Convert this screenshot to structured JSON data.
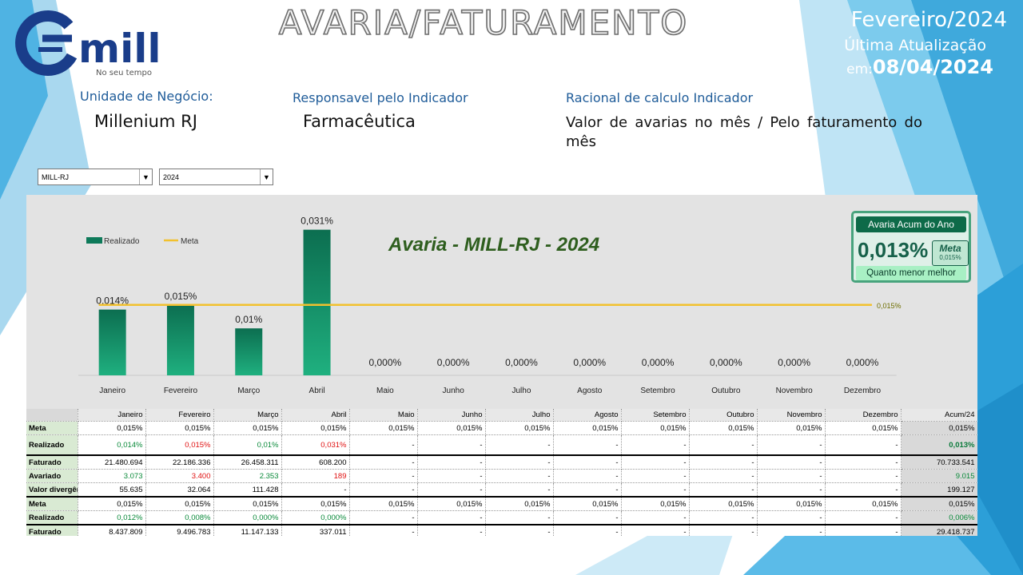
{
  "brand": {
    "logo_text": "mill",
    "logo_tagline": "No seu tempo"
  },
  "header": {
    "title": "AVARIA/FATURAMENTO",
    "period": "Fevereiro/2024",
    "update_label_1": "Última Atualização",
    "update_label_2": "em:",
    "update_date": "08/04/2024"
  },
  "info": {
    "unit_label": "Unidade de Negócio:",
    "unit_value": "Millenium RJ",
    "resp_label": "Responsavel pelo Indicador",
    "resp_value": "Farmacêutica",
    "calc_label": "Racional de calculo Indicador",
    "calc_value": "Valor de avarias no mês / Pelo faturamento do mês"
  },
  "filters": {
    "unit": "MILL-RJ",
    "year": "2024"
  },
  "kpi": {
    "title": "Avaria Acum do Ano",
    "value": "0,013%",
    "meta_label": "Meta",
    "meta_value": "0,015%",
    "note": "Quanto menor melhor"
  },
  "colors": {
    "bar": "#0e7a5a",
    "meta_line": "#f2c12e",
    "accent": "#1f5c99",
    "good": "#0a8a3a",
    "bad": "#e01010"
  },
  "chart_data": {
    "type": "bar",
    "title": "Avaria - MILL-RJ - 2024",
    "categories": [
      "Janeiro",
      "Fevereiro",
      "Março",
      "Abril",
      "Maio",
      "Junho",
      "Julho",
      "Agosto",
      "Setembro",
      "Outubro",
      "Novembro",
      "Dezembro"
    ],
    "series": [
      {
        "name": "Realizado",
        "values": [
          0.014,
          0.015,
          0.01,
          0.031,
          0,
          0,
          0,
          0,
          0,
          0,
          0,
          0
        ],
        "labels": [
          "0,014%",
          "0,015%",
          "0,01%",
          "0,031%",
          "0,000%",
          "0,000%",
          "0,000%",
          "0,000%",
          "0,000%",
          "0,000%",
          "0,000%",
          "0,000%"
        ]
      },
      {
        "name": "Meta",
        "values": [
          0.015,
          0.015,
          0.015,
          0.015,
          0.015,
          0.015,
          0.015,
          0.015,
          0.015,
          0.015,
          0.015,
          0.015
        ],
        "end_label": "0,015%"
      }
    ],
    "ylim": [
      0,
      0.034
    ],
    "legend": "top-left",
    "grid": false
  },
  "table": {
    "header": [
      "Janeiro",
      "Fevereiro",
      "Março",
      "Abril",
      "Maio",
      "Junho",
      "Julho",
      "Agosto",
      "Setembro",
      "Outubro",
      "Novembro",
      "Dezembro",
      "Acum/24"
    ],
    "rows": [
      {
        "label": "Meta",
        "cls": "",
        "values": [
          "0,015%",
          "0,015%",
          "0,015%",
          "0,015%",
          "0,015%",
          "0,015%",
          "0,015%",
          "0,015%",
          "0,015%",
          "0,015%",
          "0,015%",
          "0,015%",
          "0,015%"
        ],
        "colors": [
          "",
          "",
          "",
          "",
          "",
          "",
          "",
          "",
          "",
          "",
          "",
          "",
          ""
        ]
      },
      {
        "label": "Realizado",
        "cls": "tall thick",
        "values": [
          "0,014%",
          "0,015%",
          "0,01%",
          "0,031%",
          "-",
          "-",
          "-",
          "-",
          "-",
          "-",
          "-",
          "-",
          "0,013%"
        ],
        "colors": [
          "g",
          "r",
          "g",
          "r",
          "",
          "",
          "",
          "",
          "",
          "",
          "",
          "",
          "bg"
        ]
      },
      {
        "label": "Faturado",
        "cls": "",
        "values": [
          "21.480.694",
          "22.186.336",
          "26.458.311",
          "608.200",
          "-",
          "-",
          "-",
          "-",
          "-",
          "-",
          "-",
          "-",
          "70.733.541"
        ],
        "colors": [
          "",
          "",
          "",
          "",
          "",
          "",
          "",
          "",
          "",
          "",
          "",
          "",
          ""
        ]
      },
      {
        "label": "Avariado",
        "cls": "",
        "values": [
          "3.073",
          "3.400",
          "2.353",
          "189",
          "-",
          "-",
          "-",
          "-",
          "-",
          "-",
          "-",
          "-",
          "9.015"
        ],
        "colors": [
          "g",
          "r",
          "g",
          "r",
          "",
          "",
          "",
          "",
          "",
          "",
          "",
          "",
          "g"
        ]
      },
      {
        "label": "Valor divergên",
        "cls": "thick",
        "values": [
          "55.635",
          "32.064",
          "111.428",
          "-",
          "-",
          "-",
          "-",
          "-",
          "-",
          "-",
          "-",
          "-",
          "199.127"
        ],
        "colors": [
          "",
          "",
          "",
          "",
          "",
          "",
          "",
          "",
          "",
          "",
          "",
          "",
          ""
        ]
      },
      {
        "label": "Meta",
        "cls": "",
        "values": [
          "0,015%",
          "0,015%",
          "0,015%",
          "0,015%",
          "0,015%",
          "0,015%",
          "0,015%",
          "0,015%",
          "0,015%",
          "0,015%",
          "0,015%",
          "0,015%",
          "0,015%"
        ],
        "colors": [
          "",
          "",
          "",
          "",
          "",
          "",
          "",
          "",
          "",
          "",
          "",
          "",
          ""
        ]
      },
      {
        "label": "Realizado",
        "cls": "thick",
        "values": [
          "0,012%",
          "0,008%",
          "0,000%",
          "0,000%",
          "-",
          "-",
          "-",
          "-",
          "-",
          "-",
          "-",
          "-",
          "0,006%"
        ],
        "colors": [
          "g",
          "g",
          "g",
          "g",
          "",
          "",
          "",
          "",
          "",
          "",
          "",
          "",
          "g"
        ]
      },
      {
        "label": "Faturado",
        "cls": "",
        "values": [
          "8.437.809",
          "9.496.783",
          "11.147.133",
          "337.011",
          "-",
          "-",
          "-",
          "-",
          "-",
          "-",
          "-",
          "-",
          "29.418.737"
        ],
        "colors": [
          "",
          "",
          "",
          "",
          "",
          "",
          "",
          "",
          "",
          "",
          "",
          "",
          ""
        ]
      }
    ]
  }
}
